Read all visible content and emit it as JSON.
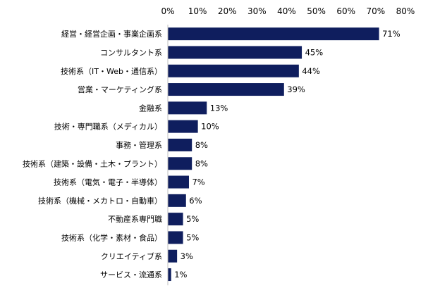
{
  "chart_data": {
    "type": "bar",
    "orientation": "horizontal",
    "title": "",
    "xlabel": "",
    "ylabel": "",
    "xlim": [
      0,
      80
    ],
    "ticks": [
      0,
      10,
      20,
      30,
      40,
      50,
      60,
      70,
      80
    ],
    "tick_suffix": "%",
    "value_suffix": "%",
    "bar_color": "#0f1e5e",
    "grid": false,
    "categories": [
      "経営・経営企画・事業企画系",
      "コンサルタント系",
      "技術系（IT・Web・通信系）",
      "営業・マーケティング系",
      "金融系",
      "技術・専門職系（メディカル）",
      "事務・管理系",
      "技術系（建築・設備・土木・プラント）",
      "技術系（電気・電子・半導体）",
      "技術系（機械・メカトロ・自動車）",
      "不動産系専門職",
      "技術系（化学・素材・食品）",
      "クリエイティブ系",
      "サービス・流通系"
    ],
    "values": [
      71,
      45,
      44,
      39,
      13,
      10,
      8,
      8,
      7,
      6,
      5,
      5,
      3,
      1
    ]
  }
}
